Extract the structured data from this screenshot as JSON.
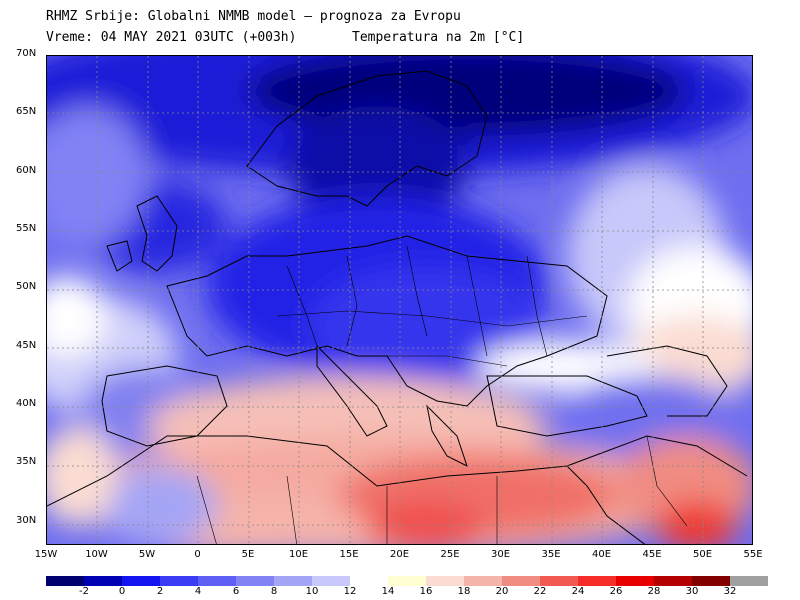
{
  "header": {
    "line1": "RHMZ Srbije: Globalni NMMB model – prognoza za Evropu",
    "line2": "Vreme: 04 MAY 2021 03UTC (+003h)",
    "line2b": "Temperatura na 2m [°C]"
  },
  "map": {
    "lat_labels": [
      "70N",
      "65N",
      "60N",
      "55N",
      "50N",
      "45N",
      "40N",
      "35N",
      "30N"
    ],
    "lon_labels": [
      "15W",
      "10W",
      "5W",
      "0",
      "5E",
      "10E",
      "15E",
      "20E",
      "25E",
      "30E",
      "35E",
      "40E",
      "45E",
      "50E",
      "55E"
    ],
    "lat_range": [
      28,
      70
    ],
    "lon_range": [
      -15,
      55
    ]
  },
  "legend": {
    "labels": [
      "-2",
      "0",
      "2",
      "4",
      "6",
      "8",
      "10",
      "12",
      "14",
      "16",
      "18",
      "20",
      "22",
      "24",
      "26",
      "28",
      "30",
      "32"
    ],
    "colors": [
      "#00006e",
      "#0000b4",
      "#1414f0",
      "#3c3cf5",
      "#5f5ff5",
      "#8282f5",
      "#a5a5f5",
      "#c8c8fa",
      "#ffffff",
      "#ffffd2",
      "#fadcd2",
      "#f5b4aa",
      "#f08c82",
      "#f05a50",
      "#f52d28",
      "#e60000",
      "#b40000",
      "#820000",
      "#a0a0a0"
    ]
  }
}
